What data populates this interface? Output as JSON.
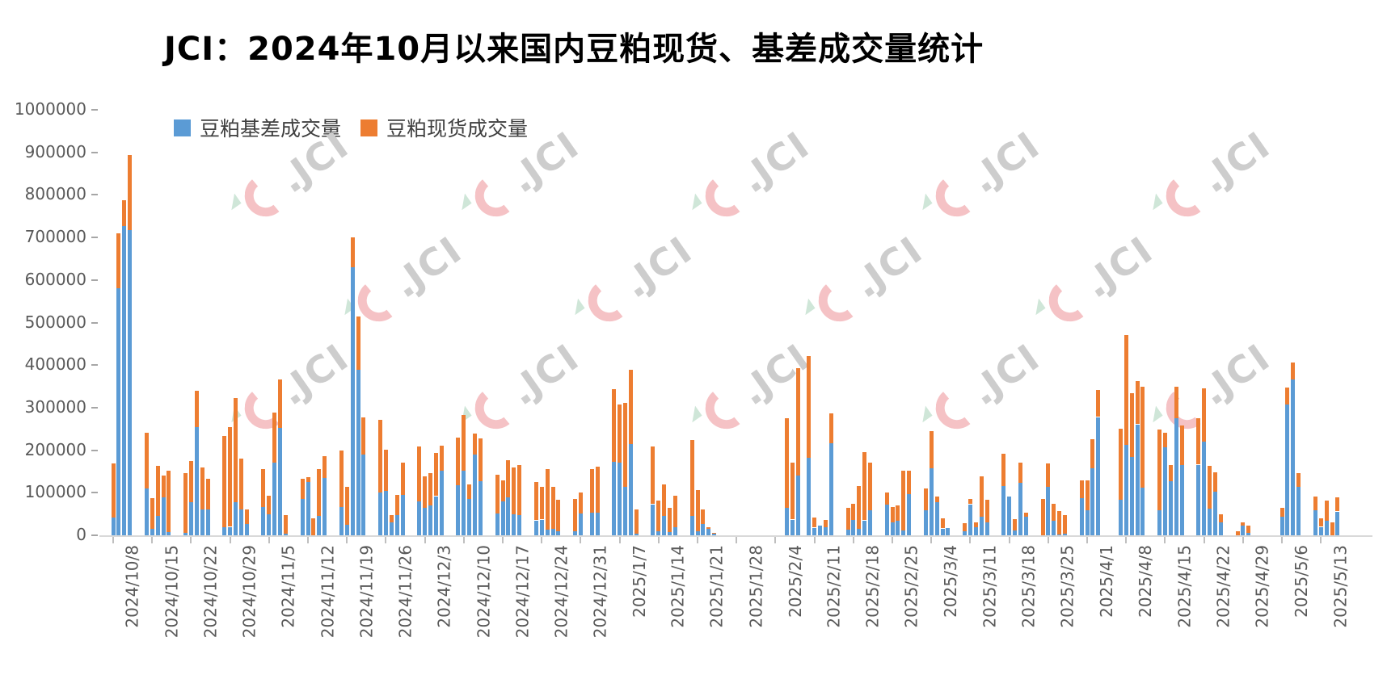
{
  "watermark": {
    "text": "JCI"
  },
  "chart_data": {
    "type": "bar",
    "stacked": true,
    "title": "JCI：2024年10月以来国内豆粕现货、基差成交量统计",
    "xlabel": "",
    "ylabel": "",
    "ylim": [
      0,
      1000000
    ],
    "ytick_step": 100000,
    "grid": false,
    "legend_position": "top-left",
    "axis_text_color": "#595959",
    "series": [
      {
        "name": "豆粕基差成交量",
        "color": "#5B9BD5"
      },
      {
        "name": "豆粕现货成交量",
        "color": "#ED7D31"
      }
    ],
    "x_ticks": [
      [
        "2024/10/8",
        0
      ],
      [
        "2024/10/15",
        7
      ],
      [
        "2024/10/22",
        14
      ],
      [
        "2024/10/29",
        21
      ],
      [
        "2024/11/5",
        28
      ],
      [
        "2024/11/12",
        35
      ],
      [
        "2024/11/19",
        42
      ],
      [
        "2024/11/26",
        49
      ],
      [
        "2024/12/3",
        56
      ],
      [
        "2024/12/10",
        63
      ],
      [
        "2024/12/17",
        70
      ],
      [
        "2024/12/24",
        77
      ],
      [
        "2024/12/31",
        84
      ],
      [
        "2025/1/7",
        91
      ],
      [
        "2025/1/14",
        98
      ],
      [
        "2025/1/21",
        105
      ],
      [
        "2025/1/28",
        112
      ],
      [
        "2025/2/4",
        119
      ],
      [
        "2025/2/11",
        126
      ],
      [
        "2025/2/18",
        133
      ],
      [
        "2025/2/25",
        140
      ],
      [
        "2025/3/4",
        147
      ],
      [
        "2025/3/11",
        154
      ],
      [
        "2025/3/18",
        161
      ],
      [
        "2025/3/25",
        168
      ],
      [
        "2025/4/1",
        175
      ],
      [
        "2025/4/8",
        182
      ],
      [
        "2025/4/15",
        189
      ],
      [
        "2025/4/22",
        196
      ],
      [
        "2025/4/29",
        203
      ],
      [
        "2025/5/6",
        210
      ],
      [
        "2025/5/13",
        217
      ]
    ],
    "bars_format": [
      "date",
      "day_offset",
      "basis_volume",
      "spot_volume"
    ],
    "bars": [
      [
        "2024/10/8",
        0,
        42000,
        127000
      ],
      [
        "2024/10/9",
        1,
        580000,
        130000
      ],
      [
        "2024/10/10",
        2,
        727000,
        60000
      ],
      [
        "2024/10/11",
        3,
        717000,
        177000
      ],
      [
        "2024/10/14",
        6,
        110000,
        132000
      ],
      [
        "2024/10/15",
        7,
        16000,
        71000
      ],
      [
        "2024/10/16",
        8,
        46000,
        117000
      ],
      [
        "2024/10/17",
        9,
        89000,
        52000
      ],
      [
        "2024/10/18",
        10,
        8000,
        144000
      ],
      [
        "2024/10/21",
        13,
        5000,
        142000
      ],
      [
        "2024/10/22",
        14,
        77000,
        97000
      ],
      [
        "2024/10/23",
        15,
        254000,
        85000
      ],
      [
        "2024/10/24",
        16,
        61000,
        98000
      ],
      [
        "2024/10/25",
        17,
        61000,
        71000
      ],
      [
        "2024/10/28",
        20,
        19000,
        214000
      ],
      [
        "2024/10/29",
        21,
        20000,
        235000
      ],
      [
        "2024/10/30",
        22,
        78000,
        245000
      ],
      [
        "2024/10/31",
        23,
        60000,
        120000
      ],
      [
        "2024/11/1",
        24,
        27000,
        33000
      ],
      [
        "2024/11/4",
        27,
        66000,
        89000
      ],
      [
        "2024/11/5",
        28,
        50000,
        44000
      ],
      [
        "2024/11/6",
        29,
        171000,
        118000
      ],
      [
        "2024/11/7",
        30,
        252000,
        114000
      ],
      [
        "2024/11/8",
        31,
        4000,
        43000
      ],
      [
        "2024/11/11",
        34,
        85000,
        48000
      ],
      [
        "2024/11/12",
        35,
        125000,
        11000
      ],
      [
        "2024/11/13",
        36,
        0,
        39000
      ],
      [
        "2024/11/14",
        37,
        46000,
        109000
      ],
      [
        "2024/11/15",
        38,
        134000,
        53000
      ],
      [
        "2024/11/18",
        41,
        66000,
        133000
      ],
      [
        "2024/11/19",
        42,
        25000,
        89000
      ],
      [
        "2024/11/20",
        43,
        630000,
        70000
      ],
      [
        "2024/11/21",
        44,
        389000,
        126000
      ],
      [
        "2024/11/22",
        45,
        189000,
        88000
      ],
      [
        "2024/11/25",
        48,
        101000,
        170000
      ],
      [
        "2024/11/26",
        49,
        104000,
        97000
      ],
      [
        "2024/11/27",
        50,
        30000,
        18000
      ],
      [
        "2024/11/28",
        51,
        47000,
        48000
      ],
      [
        "2024/11/29",
        52,
        95000,
        75000
      ],
      [
        "2024/12/2",
        55,
        79000,
        130000
      ],
      [
        "2024/12/3",
        56,
        65000,
        73000
      ],
      [
        "2024/12/4",
        57,
        70000,
        76000
      ],
      [
        "2024/12/5",
        58,
        92000,
        101000
      ],
      [
        "2024/12/6",
        59,
        151000,
        59000
      ],
      [
        "2024/12/9",
        62,
        117000,
        112000
      ],
      [
        "2024/12/10",
        63,
        152000,
        130000
      ],
      [
        "2024/12/11",
        64,
        86000,
        33000
      ],
      [
        "2024/12/12",
        65,
        190000,
        50000
      ],
      [
        "2024/12/13",
        66,
        127000,
        100000
      ],
      [
        "2024/12/16",
        69,
        51000,
        91000
      ],
      [
        "2024/12/17",
        70,
        79000,
        50000
      ],
      [
        "2024/12/18",
        71,
        89000,
        87000
      ],
      [
        "2024/12/19",
        72,
        49000,
        111000
      ],
      [
        "2024/12/20",
        73,
        48000,
        117000
      ],
      [
        "2024/12/23",
        76,
        35000,
        90000
      ],
      [
        "2024/12/24",
        77,
        37000,
        76000
      ],
      [
        "2024/12/25",
        78,
        13000,
        142000
      ],
      [
        "2024/12/26",
        79,
        15000,
        98000
      ],
      [
        "2024/12/27",
        80,
        9000,
        75000
      ],
      [
        "2024/12/30",
        83,
        10000,
        75000
      ],
      [
        "2024/12/31",
        84,
        51000,
        49000
      ],
      [
        "2025/1/2",
        86,
        53000,
        102000
      ],
      [
        "2025/1/3",
        87,
        54000,
        107000
      ],
      [
        "2025/1/6",
        90,
        173000,
        171000
      ],
      [
        "2025/1/7",
        91,
        170000,
        137000
      ],
      [
        "2025/1/8",
        92,
        113000,
        198000
      ],
      [
        "2025/1/9",
        93,
        215000,
        174000
      ],
      [
        "2025/1/10",
        94,
        4000,
        57000
      ],
      [
        "2025/1/13",
        97,
        73000,
        135000
      ],
      [
        "2025/1/14",
        98,
        9000,
        73000
      ],
      [
        "2025/1/15",
        99,
        45000,
        75000
      ],
      [
        "2025/1/16",
        100,
        7000,
        57000
      ],
      [
        "2025/1/17",
        101,
        20000,
        73000
      ],
      [
        "2025/1/20",
        104,
        45000,
        179000
      ],
      [
        "2025/1/21",
        105,
        9000,
        98000
      ],
      [
        "2025/1/22",
        106,
        26000,
        35000
      ],
      [
        "2025/1/23",
        107,
        15000,
        5000
      ],
      [
        "2025/1/24",
        108,
        4000,
        2000
      ],
      [
        "2025/2/5",
        121,
        65000,
        210000
      ],
      [
        "2025/2/6",
        122,
        37000,
        133000
      ],
      [
        "2025/2/7",
        123,
        141000,
        251000
      ],
      [
        "2025/2/10",
        125,
        183000,
        239000
      ],
      [
        "2025/2/11",
        126,
        18000,
        24000
      ],
      [
        "2025/2/12",
        127,
        23000,
        0
      ],
      [
        "2025/2/13",
        128,
        20000,
        17000
      ],
      [
        "2025/2/14",
        129,
        216000,
        70000
      ],
      [
        "2025/2/17",
        132,
        13000,
        51000
      ],
      [
        "2025/2/18",
        133,
        37000,
        38000
      ],
      [
        "2025/2/19",
        134,
        16000,
        99000
      ],
      [
        "2025/2/20",
        135,
        35000,
        161000
      ],
      [
        "2025/2/21",
        136,
        58000,
        112000
      ],
      [
        "2025/2/24",
        139,
        72000,
        28000
      ],
      [
        "2025/2/25",
        140,
        30000,
        37000
      ],
      [
        "2025/2/26",
        141,
        34000,
        37000
      ],
      [
        "2025/2/27",
        142,
        12000,
        139000
      ],
      [
        "2025/2/28",
        143,
        97000,
        54000
      ],
      [
        "2025/3/3",
        146,
        58000,
        53000
      ],
      [
        "2025/3/4",
        147,
        157000,
        88000
      ],
      [
        "2025/3/5",
        148,
        77000,
        15000
      ],
      [
        "2025/3/6",
        149,
        16000,
        24000
      ],
      [
        "2025/3/7",
        150,
        18000,
        0
      ],
      [
        "2025/3/10",
        153,
        9000,
        19000
      ],
      [
        "2025/3/11",
        154,
        73000,
        12000
      ],
      [
        "2025/3/12",
        155,
        19000,
        11000
      ],
      [
        "2025/3/13",
        156,
        44000,
        95000
      ],
      [
        "2025/3/14",
        157,
        30000,
        54000
      ],
      [
        "2025/3/17",
        160,
        116000,
        76000
      ],
      [
        "2025/3/18",
        161,
        91000,
        0
      ],
      [
        "2025/3/19",
        162,
        11000,
        27000
      ],
      [
        "2025/3/20",
        163,
        123000,
        47000
      ],
      [
        "2025/3/21",
        164,
        43000,
        11000
      ],
      [
        "2025/3/24",
        167,
        0,
        85000
      ],
      [
        "2025/3/25",
        168,
        114000,
        55000
      ],
      [
        "2025/3/26",
        169,
        35000,
        39000
      ],
      [
        "2025/3/27",
        170,
        3000,
        54000
      ],
      [
        "2025/3/28",
        171,
        4000,
        44000
      ],
      [
        "2025/3/31",
        174,
        87000,
        43000
      ],
      [
        "2025/4/1",
        175,
        58000,
        72000
      ],
      [
        "2025/4/2",
        176,
        158000,
        68000
      ],
      [
        "2025/4/3",
        177,
        278000,
        64000
      ],
      [
        "2025/4/7",
        181,
        84000,
        167000
      ],
      [
        "2025/4/8",
        182,
        212000,
        259000
      ],
      [
        "2025/4/9",
        183,
        185000,
        149000
      ],
      [
        "2025/4/10",
        184,
        261000,
        102000
      ],
      [
        "2025/4/11",
        185,
        112000,
        238000
      ],
      [
        "2025/4/14",
        188,
        59000,
        189000
      ],
      [
        "2025/4/15",
        189,
        207000,
        34000
      ],
      [
        "2025/4/16",
        190,
        128000,
        38000
      ],
      [
        "2025/4/17",
        191,
        275000,
        75000
      ],
      [
        "2025/4/18",
        192,
        166000,
        93000
      ],
      [
        "2025/4/21",
        195,
        166000,
        109000
      ],
      [
        "2025/4/22",
        196,
        221000,
        125000
      ],
      [
        "2025/4/23",
        197,
        63000,
        101000
      ],
      [
        "2025/4/24",
        198,
        102000,
        47000
      ],
      [
        "2025/4/25",
        199,
        31000,
        19000
      ],
      [
        "2025/4/28",
        202,
        0,
        9000
      ],
      [
        "2025/4/29",
        203,
        22000,
        8000
      ],
      [
        "2025/4/30",
        204,
        5000,
        17000
      ],
      [
        "2025/5/6",
        210,
        43000,
        22000
      ],
      [
        "2025/5/7",
        211,
        307000,
        41000
      ],
      [
        "2025/5/8",
        212,
        367000,
        40000
      ],
      [
        "2025/5/9",
        213,
        113000,
        34000
      ],
      [
        "2025/5/12",
        216,
        58000,
        34000
      ],
      [
        "2025/5/13",
        217,
        20000,
        20000
      ],
      [
        "2025/5/14",
        218,
        34000,
        47000
      ],
      [
        "2025/5/15",
        219,
        0,
        30000
      ],
      [
        "2025/5/16",
        220,
        56000,
        33000
      ]
    ]
  }
}
